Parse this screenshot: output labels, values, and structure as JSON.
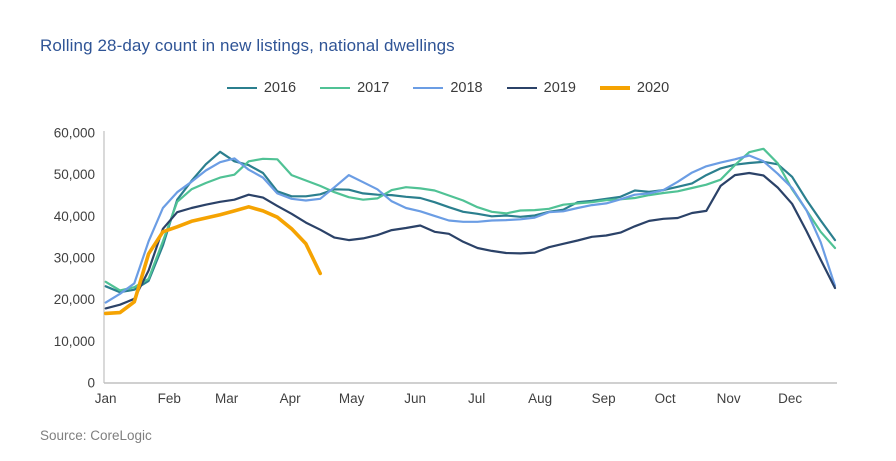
{
  "title": "Rolling 28-day count in new listings, national dwellings",
  "source": "Source: CoreLogic",
  "colors": {
    "title_text": "#2f5496",
    "axis_line": "#c0c0c0",
    "axis_text": "#404040",
    "source_text": "#7f7f7f"
  },
  "legend": {
    "items": [
      "2016",
      "2017",
      "2018",
      "2019",
      "2020"
    ]
  },
  "chart_data": {
    "type": "line",
    "title": "Rolling 28-day count in new listings, national dwellings",
    "xlabel": "",
    "ylabel": "",
    "x_unit": "weekly points, Jan through late Dec",
    "grid": false,
    "legend_position": "top-center",
    "x_axis": {
      "labels": [
        "Jan",
        "Feb",
        "Mar",
        "Apr",
        "May",
        "Jun",
        "Jul",
        "Aug",
        "Sep",
        "Oct",
        "Nov",
        "Dec"
      ],
      "label_day_offsets": [
        0,
        31,
        59,
        90,
        120,
        151,
        181,
        212,
        243,
        273,
        304,
        334
      ],
      "total_days": 334
    },
    "y_axis": {
      "min": 0,
      "max": 60000,
      "ticks": [
        {
          "value": 0,
          "label": "0"
        },
        {
          "value": 10000,
          "label": "10,000"
        },
        {
          "value": 20000,
          "label": "20,000"
        },
        {
          "value": 30000,
          "label": "30,000"
        },
        {
          "value": 40000,
          "label": "40,000"
        },
        {
          "value": 50000,
          "label": "50,000"
        },
        {
          "value": 60000,
          "label": "60,000"
        }
      ]
    },
    "series": [
      {
        "name": "2016",
        "color": "#2b7f8e",
        "stroke_width": 2.2,
        "values": [
          23200,
          21800,
          22400,
          24500,
          33000,
          44000,
          48500,
          52500,
          55500,
          53200,
          52300,
          50400,
          46000,
          44800,
          44800,
          45300,
          46500,
          46400,
          45500,
          45200,
          45100,
          44700,
          44400,
          43400,
          42200,
          41100,
          40600,
          40000,
          40200,
          39900,
          40200,
          41100,
          41600,
          43400,
          43700,
          44200,
          44700,
          46200,
          45900,
          46300,
          47100,
          47900,
          49900,
          51500,
          52400,
          52800,
          53100,
          52500,
          49500,
          44000,
          39000,
          34300
        ]
      },
      {
        "name": "2017",
        "color": "#50c295",
        "stroke_width": 2.2,
        "values": [
          24300,
          22200,
          23000,
          25000,
          34000,
          43500,
          46500,
          48000,
          49300,
          50000,
          53200,
          53800,
          53700,
          49900,
          48600,
          47300,
          45800,
          44600,
          44000,
          44300,
          46300,
          47000,
          46700,
          46200,
          45000,
          43800,
          42200,
          41100,
          40700,
          41400,
          41500,
          41800,
          42800,
          43100,
          43400,
          43900,
          44100,
          44400,
          45100,
          45600,
          46000,
          46800,
          47600,
          48800,
          52300,
          55400,
          56200,
          52700,
          46500,
          41500,
          36300,
          32400
        ]
      },
      {
        "name": "2018",
        "color": "#6b9de4",
        "stroke_width": 2.2,
        "values": [
          19300,
          21400,
          23900,
          34000,
          42000,
          45800,
          48300,
          51000,
          53000,
          53900,
          51200,
          49300,
          45500,
          44200,
          43800,
          44200,
          47000,
          49900,
          48200,
          46500,
          43600,
          42000,
          41200,
          40100,
          39000,
          38700,
          38700,
          39000,
          39100,
          39300,
          39700,
          41000,
          41200,
          42000,
          42700,
          43100,
          44100,
          45200,
          45500,
          46300,
          48300,
          50500,
          52000,
          52900,
          53700,
          54600,
          53200,
          50200,
          46800,
          41500,
          33800,
          23300
        ]
      },
      {
        "name": "2019",
        "color": "#2b4268",
        "stroke_width": 2.2,
        "values": [
          17900,
          18800,
          20200,
          27000,
          37000,
          41000,
          42000,
          42800,
          43500,
          44000,
          45200,
          44500,
          42500,
          40600,
          38500,
          36800,
          34900,
          34300,
          34700,
          35500,
          36700,
          37200,
          37800,
          36300,
          35800,
          33900,
          32400,
          31700,
          31200,
          31100,
          31300,
          32600,
          33400,
          34200,
          35100,
          35400,
          36100,
          37600,
          38900,
          39400,
          39600,
          40800,
          41300,
          47300,
          49900,
          50400,
          49800,
          46900,
          43000,
          36500,
          29600,
          22800
        ]
      },
      {
        "name": "2020",
        "color": "#f5a302",
        "stroke_width": 3.6,
        "values": [
          16700,
          16900,
          19500,
          31000,
          36300,
          37500,
          38800,
          39600,
          40400,
          41300,
          42300,
          41300,
          39800,
          37000,
          33400,
          26300
        ]
      }
    ]
  }
}
